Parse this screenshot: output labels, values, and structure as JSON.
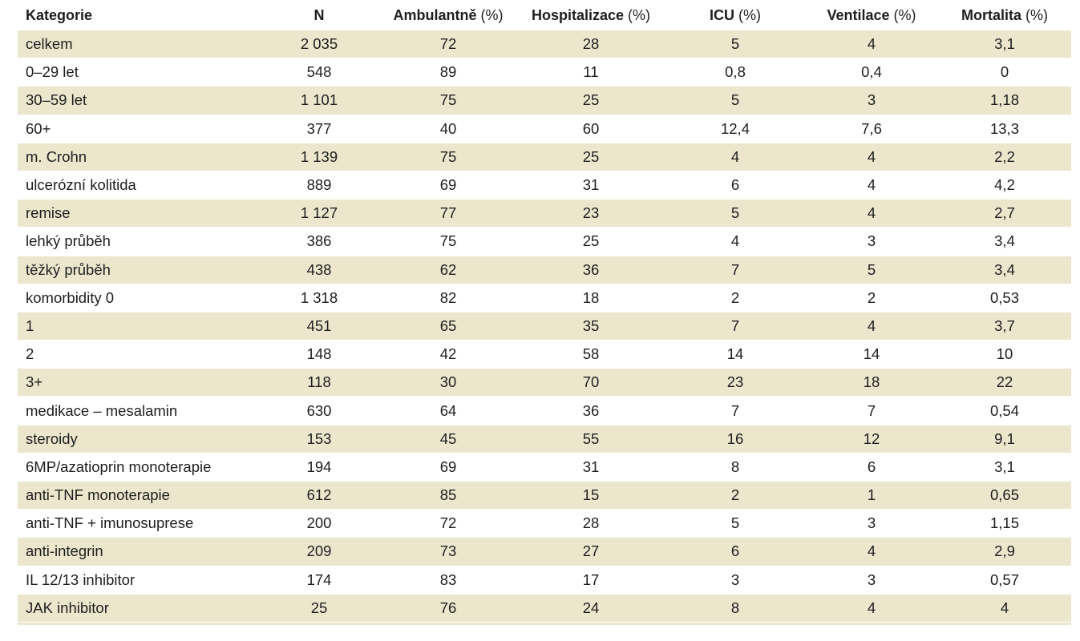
{
  "table": {
    "headers": [
      {
        "label": "Kategorie",
        "unit": ""
      },
      {
        "label": "N",
        "unit": ""
      },
      {
        "label": "Ambulantně",
        "unit": " (%)"
      },
      {
        "label": "Hospitalizace",
        "unit": " (%)"
      },
      {
        "label": "ICU",
        "unit": " (%)"
      },
      {
        "label": "Ventilace",
        "unit": " (%)"
      },
      {
        "label": "Mortalita",
        "unit": " (%)"
      }
    ],
    "rows": [
      [
        "celkem",
        "2 035",
        "72",
        "28",
        "5",
        "4",
        "3,1"
      ],
      [
        "0–29 let",
        "548",
        "89",
        "11",
        "0,8",
        "0,4",
        "0"
      ],
      [
        "30–59 let",
        "1 101",
        "75",
        "25",
        "5",
        "3",
        "1,18"
      ],
      [
        "60+",
        "377",
        "40",
        "60",
        "12,4",
        "7,6",
        "13,3"
      ],
      [
        "m. Crohn",
        "1 139",
        "75",
        "25",
        "4",
        "4",
        "2,2"
      ],
      [
        "ulcerózní kolitida",
        "889",
        "69",
        "31",
        "6",
        "4",
        "4,2"
      ],
      [
        "remise",
        "1 127",
        "77",
        "23",
        "5",
        "4",
        "2,7"
      ],
      [
        "lehký průběh",
        "386",
        "75",
        "25",
        "4",
        "3",
        "3,4"
      ],
      [
        "těžký průběh",
        "438",
        "62",
        "36",
        "7",
        "5",
        "3,4"
      ],
      [
        "komorbidity 0",
        "1 318",
        "82",
        "18",
        "2",
        "2",
        "0,53"
      ],
      [
        "1",
        "451",
        "65",
        "35",
        "7",
        "4",
        "3,7"
      ],
      [
        "2",
        "148",
        "42",
        "58",
        "14",
        "14",
        "10"
      ],
      [
        "3+",
        "118",
        "30",
        "70",
        "23",
        "18",
        "22"
      ],
      [
        "medikace – mesalamin",
        "630",
        "64",
        "36",
        "7",
        "7",
        "0,54"
      ],
      [
        "steroidy",
        "153",
        "45",
        "55",
        "16",
        "12",
        "9,1"
      ],
      [
        "6MP/azatioprin monoterapie",
        "194",
        "69",
        "31",
        "8",
        "6",
        "3,1"
      ],
      [
        "anti-TNF monoterapie",
        "612",
        "85",
        "15",
        "2",
        "1",
        "0,65"
      ],
      [
        "anti-TNF + imunosuprese",
        "200",
        "72",
        "28",
        "5",
        "3",
        "1,15"
      ],
      [
        "anti-integrin",
        "209",
        "73",
        "27",
        "6",
        "4",
        "2,9"
      ],
      [
        "IL 12/13 inhibitor",
        "174",
        "83",
        "17",
        "3",
        "3",
        "0,57"
      ],
      [
        "JAK inhibitor",
        "25",
        "76",
        "24",
        "8",
        "4",
        "4"
      ]
    ]
  },
  "colors": {
    "band": "#ece6cd",
    "text": "#1e1e1e"
  }
}
